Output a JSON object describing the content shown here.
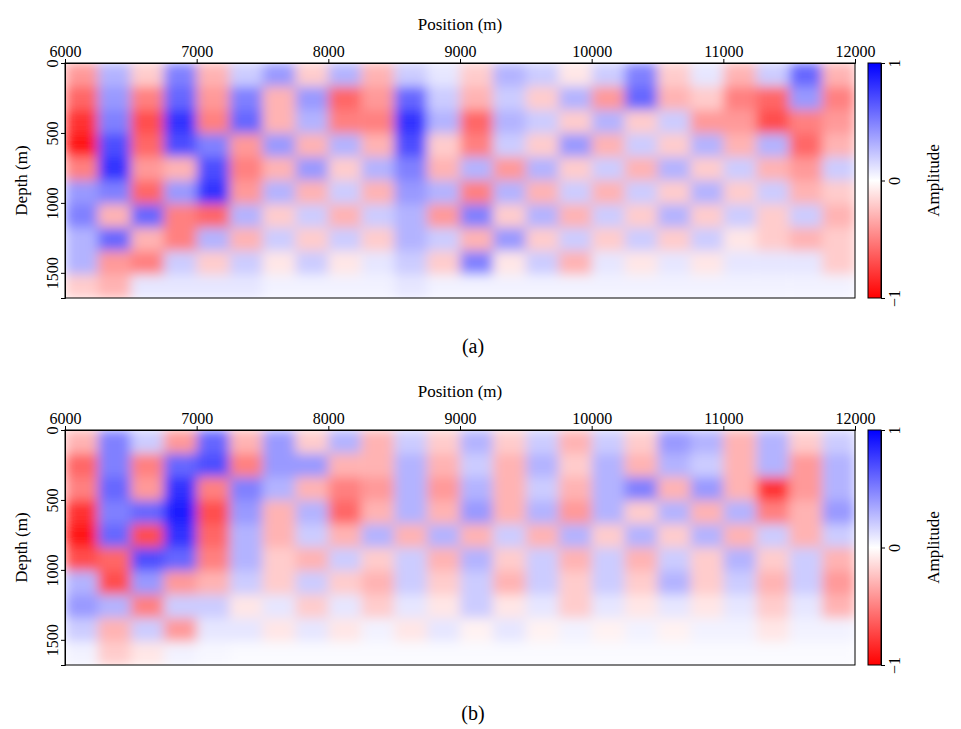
{
  "chart_data": [
    {
      "type": "heatmap",
      "title": "(a)",
      "x_label": "Position (m)",
      "y_label": "Depth (m)",
      "z_label": "Amplitude",
      "xlim": [
        6000,
        12000
      ],
      "xticks": [
        6000,
        7000,
        8000,
        9000,
        10000,
        11000,
        12000
      ],
      "ylim": [
        0,
        1680
      ],
      "yticks": [
        0,
        500,
        1000,
        1500
      ],
      "zlim": [
        -1,
        1
      ],
      "zticks": [
        {
          "value": -1,
          "label": "−1"
        },
        0,
        1
      ],
      "x": [
        6125,
        6375,
        6625,
        6875,
        7125,
        7375,
        7625,
        7875,
        8125,
        8375,
        8625,
        8875,
        9125,
        9375,
        9625,
        9875,
        10125,
        10375,
        10625,
        10875,
        11125,
        11375,
        11625,
        11875
      ],
      "y": [
        84,
        252,
        420,
        588,
        756,
        924,
        1092,
        1260,
        1428,
        1596
      ],
      "values": [
        [
          -0.4,
          0.3,
          -0.2,
          0.5,
          -0.3,
          0.2,
          0.4,
          -0.2,
          0.3,
          -0.3,
          0.2,
          0.1,
          -0.2,
          0.3,
          0.2,
          -0.1,
          0.2,
          0.5,
          -0.2,
          0.1,
          -0.3,
          0.2,
          0.6,
          -0.3
        ],
        [
          -0.6,
          0.4,
          -0.5,
          0.6,
          -0.4,
          0.5,
          -0.3,
          0.4,
          -0.6,
          -0.4,
          0.6,
          0.2,
          -0.3,
          0.2,
          -0.2,
          0.3,
          -0.4,
          0.6,
          -0.3,
          -0.2,
          -0.5,
          -0.6,
          0.4,
          -0.5
        ],
        [
          -0.8,
          0.5,
          -0.7,
          0.8,
          -0.5,
          0.6,
          -0.3,
          0.3,
          -0.5,
          -0.5,
          0.8,
          0.3,
          -0.6,
          0.3,
          0.2,
          -0.2,
          0.3,
          -0.2,
          0.2,
          -0.4,
          -0.4,
          -0.7,
          -0.5,
          -0.4
        ],
        [
          -0.9,
          0.7,
          -0.6,
          0.7,
          0.5,
          -0.4,
          0.4,
          -0.3,
          0.3,
          -0.3,
          0.7,
          -0.2,
          -0.5,
          0.2,
          -0.2,
          0.4,
          -0.3,
          0.2,
          -0.2,
          0.3,
          -0.3,
          0.3,
          -0.6,
          -0.3
        ],
        [
          -0.5,
          0.8,
          -0.4,
          -0.3,
          0.7,
          -0.5,
          -0.3,
          0.4,
          -0.2,
          0.3,
          0.5,
          -0.3,
          0.3,
          -0.4,
          0.3,
          -0.2,
          0.2,
          -0.3,
          0.3,
          -0.2,
          0.2,
          -0.3,
          -0.4,
          0.2
        ],
        [
          0.4,
          0.5,
          -0.6,
          0.4,
          0.8,
          -0.4,
          0.3,
          -0.3,
          0.2,
          -0.3,
          0.4,
          0.3,
          -0.5,
          0.3,
          -0.3,
          0.2,
          -0.3,
          0.2,
          -0.2,
          0.3,
          -0.2,
          0.2,
          -0.3,
          -0.2
        ],
        [
          0.5,
          -0.3,
          0.6,
          -0.5,
          -0.6,
          0.3,
          -0.2,
          0.2,
          -0.3,
          0.2,
          0.3,
          -0.4,
          0.5,
          -0.2,
          0.3,
          -0.3,
          0.2,
          -0.2,
          0.3,
          -0.2,
          0.2,
          -0.2,
          0.2,
          -0.3
        ],
        [
          0.3,
          0.6,
          -0.3,
          -0.5,
          0.3,
          -0.3,
          0.2,
          -0.2,
          0.2,
          -0.2,
          0.3,
          0.2,
          -0.3,
          0.4,
          -0.2,
          0.2,
          -0.2,
          0.2,
          -0.2,
          0.2,
          -0.1,
          -0.2,
          -0.3,
          -0.2
        ],
        [
          0.3,
          -0.4,
          -0.5,
          0.2,
          -0.2,
          0.2,
          -0.1,
          0.2,
          -0.1,
          0.1,
          0.2,
          -0.2,
          0.5,
          -0.1,
          0.2,
          -0.3,
          0.1,
          -0.1,
          0.1,
          -0.1,
          0.1,
          0.1,
          0.1,
          -0.2
        ],
        [
          -0.2,
          -0.3,
          0.1,
          0.1,
          0.1,
          0.1,
          0.05,
          0.05,
          0.05,
          0.05,
          0.1,
          0.05,
          0.05,
          0.05,
          0.05,
          0.05,
          0.05,
          0.05,
          0.05,
          0.05,
          0.05,
          0.05,
          0.05,
          0.05
        ]
      ]
    },
    {
      "type": "heatmap",
      "title": "(b)",
      "x_label": "Position (m)",
      "y_label": "Depth (m)",
      "z_label": "Amplitude",
      "xlim": [
        6000,
        12000
      ],
      "xticks": [
        6000,
        7000,
        8000,
        9000,
        10000,
        11000,
        12000
      ],
      "ylim": [
        0,
        1680
      ],
      "yticks": [
        0,
        500,
        1000,
        1500
      ],
      "zlim": [
        -1,
        1
      ],
      "zticks": [
        {
          "value": -1,
          "label": "−1"
        },
        0,
        1
      ],
      "x": [
        6125,
        6375,
        6625,
        6875,
        7125,
        7375,
        7625,
        7875,
        8125,
        8375,
        8625,
        8875,
        9125,
        9375,
        9625,
        9875,
        10125,
        10375,
        10625,
        10875,
        11125,
        11375,
        11625,
        11875
      ],
      "y": [
        84,
        252,
        420,
        588,
        756,
        924,
        1092,
        1260,
        1428,
        1596
      ],
      "values": [
        [
          -0.3,
          0.5,
          0.2,
          -0.4,
          0.6,
          -0.3,
          0.4,
          -0.2,
          0.3,
          -0.3,
          0.2,
          -0.2,
          0.3,
          -0.2,
          0.2,
          -0.3,
          0.2,
          -0.2,
          0.4,
          0.3,
          -0.3,
          0.3,
          -0.2,
          0.2
        ],
        [
          -0.6,
          0.5,
          -0.5,
          0.6,
          0.7,
          -0.5,
          0.4,
          0.4,
          -0.3,
          -0.3,
          0.3,
          -0.3,
          0.2,
          -0.3,
          0.3,
          -0.2,
          0.3,
          -0.3,
          0.3,
          0.2,
          -0.3,
          0.3,
          -0.4,
          0.3
        ],
        [
          -0.5,
          0.6,
          -0.4,
          0.8,
          -0.5,
          0.5,
          0.3,
          -0.3,
          -0.5,
          -0.4,
          0.3,
          -0.4,
          0.3,
          -0.3,
          0.2,
          -0.3,
          0.3,
          0.5,
          -0.3,
          0.4,
          -0.3,
          -0.8,
          -0.4,
          0.3
        ],
        [
          -0.8,
          0.5,
          0.6,
          0.9,
          -0.7,
          0.4,
          -0.3,
          0.3,
          -0.6,
          -0.3,
          0.3,
          -0.3,
          0.4,
          -0.3,
          0.3,
          -0.4,
          0.3,
          -0.2,
          0.3,
          -0.3,
          0.3,
          -0.5,
          -0.3,
          0.4
        ],
        [
          -0.9,
          0.6,
          -0.7,
          0.8,
          -0.6,
          0.3,
          -0.3,
          0.2,
          -0.3,
          0.3,
          -0.3,
          0.3,
          -0.3,
          0.2,
          -0.3,
          0.3,
          -0.2,
          0.3,
          -0.2,
          0.3,
          -0.3,
          0.2,
          -0.3,
          0.2
        ],
        [
          -0.7,
          -0.6,
          0.7,
          0.6,
          -0.5,
          0.3,
          -0.2,
          -0.3,
          0.2,
          -0.2,
          0.2,
          -0.3,
          0.3,
          -0.2,
          0.2,
          -0.3,
          0.2,
          -0.3,
          0.2,
          -0.2,
          0.3,
          -0.2,
          0.2,
          -0.3
        ],
        [
          0.3,
          -0.7,
          0.4,
          -0.4,
          -0.3,
          0.2,
          -0.2,
          0.2,
          -0.2,
          -0.3,
          0.2,
          -0.2,
          0.2,
          -0.3,
          0.2,
          -0.2,
          0.2,
          -0.2,
          0.3,
          -0.2,
          0.2,
          -0.3,
          0.2,
          -0.4
        ],
        [
          0.4,
          0.3,
          -0.5,
          0.2,
          0.2,
          -0.1,
          0.1,
          -0.2,
          0.1,
          -0.2,
          0.1,
          -0.1,
          0.2,
          -0.1,
          0.1,
          -0.2,
          0.1,
          -0.1,
          0.1,
          -0.1,
          0.1,
          -0.2,
          0.1,
          -0.3
        ],
        [
          0.2,
          -0.3,
          0.2,
          -0.4,
          0.1,
          0.1,
          -0.1,
          0.1,
          -0.1,
          0.05,
          -0.1,
          0.1,
          -0.05,
          0.1,
          -0.05,
          0.05,
          -0.05,
          0.05,
          -0.05,
          0.05,
          0.05,
          -0.1,
          0.05,
          0.05
        ],
        [
          0.05,
          -0.2,
          -0.1,
          0.05,
          0.03,
          0.02,
          0.02,
          0.02,
          0.02,
          0.02,
          0.02,
          0.02,
          0.02,
          0.02,
          0.02,
          0.02,
          0.02,
          0.02,
          0.02,
          0.02,
          0.02,
          0.02,
          0.02,
          0.02
        ]
      ]
    }
  ]
}
